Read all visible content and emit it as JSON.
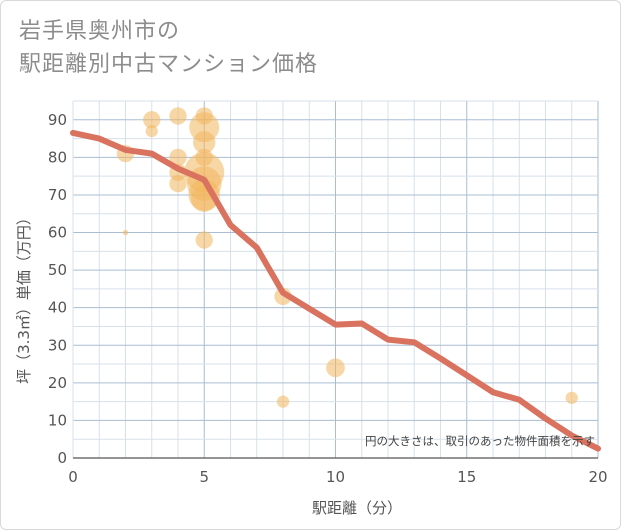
{
  "title_lines": [
    "岩手県奥州市の",
    "駅距離別中古マンション価格"
  ],
  "colors": {
    "line": "#d9735f",
    "bubble_fill": "#f2b65e",
    "grid_minor": "#d7e1ec",
    "grid_major": "#a9bdd3",
    "axis": "#555555"
  },
  "chart_data": {
    "type": "scatter",
    "title": "岩手県奥州市の駅距離別中古マンション価格",
    "xlabel": "駅距離（分）",
    "ylabel": "坪（3.3㎡）単価（万円）",
    "xlim": [
      0,
      20
    ],
    "ylim": [
      0,
      95
    ],
    "x_ticks": [
      "0",
      "5",
      "10",
      "15",
      "20"
    ],
    "y_ticks": [
      "0",
      "10",
      "20",
      "30",
      "40",
      "50",
      "60",
      "70",
      "80",
      "90"
    ],
    "annotation": "円の大きさは、取引のあった物件面積を示す",
    "series": [
      {
        "name": "trend",
        "kind": "line",
        "points": [
          [
            0,
            86.5
          ],
          [
            1,
            85
          ],
          [
            2,
            82
          ],
          [
            3,
            81
          ],
          [
            4,
            77
          ],
          [
            5,
            74
          ],
          [
            6,
            62
          ],
          [
            7,
            56
          ],
          [
            8,
            44
          ],
          [
            10,
            35.5
          ],
          [
            11,
            35.8
          ],
          [
            12,
            31.5
          ],
          [
            13,
            30.8
          ],
          [
            14,
            26.5
          ],
          [
            15,
            22
          ],
          [
            16,
            17.5
          ],
          [
            17,
            15.5
          ],
          [
            18,
            10.5
          ],
          [
            19,
            6
          ],
          [
            20,
            2.5
          ]
        ]
      },
      {
        "name": "transactions",
        "kind": "bubble",
        "points": [
          {
            "x": 2,
            "y": 81,
            "size": 3
          },
          {
            "x": 2,
            "y": 60,
            "size": 0.3
          },
          {
            "x": 3,
            "y": 90,
            "size": 3
          },
          {
            "x": 3,
            "y": 87,
            "size": 1.5
          },
          {
            "x": 4,
            "y": 91,
            "size": 3
          },
          {
            "x": 4,
            "y": 80,
            "size": 3
          },
          {
            "x": 4,
            "y": 76,
            "size": 3
          },
          {
            "x": 4,
            "y": 73,
            "size": 3
          },
          {
            "x": 5,
            "y": 91,
            "size": 3
          },
          {
            "x": 5,
            "y": 88,
            "size": 9
          },
          {
            "x": 5,
            "y": 84,
            "size": 5
          },
          {
            "x": 5,
            "y": 80,
            "size": 3
          },
          {
            "x": 5,
            "y": 76,
            "size": 16
          },
          {
            "x": 5,
            "y": 73,
            "size": 12
          },
          {
            "x": 5,
            "y": 70,
            "size": 10
          },
          {
            "x": 5,
            "y": 69,
            "size": 7
          },
          {
            "x": 5,
            "y": 58,
            "size": 3
          },
          {
            "x": 8,
            "y": 43,
            "size": 3
          },
          {
            "x": 8,
            "y": 15,
            "size": 1.5
          },
          {
            "x": 10,
            "y": 24,
            "size": 3.5
          },
          {
            "x": 19,
            "y": 16,
            "size": 1.5
          }
        ]
      }
    ]
  }
}
